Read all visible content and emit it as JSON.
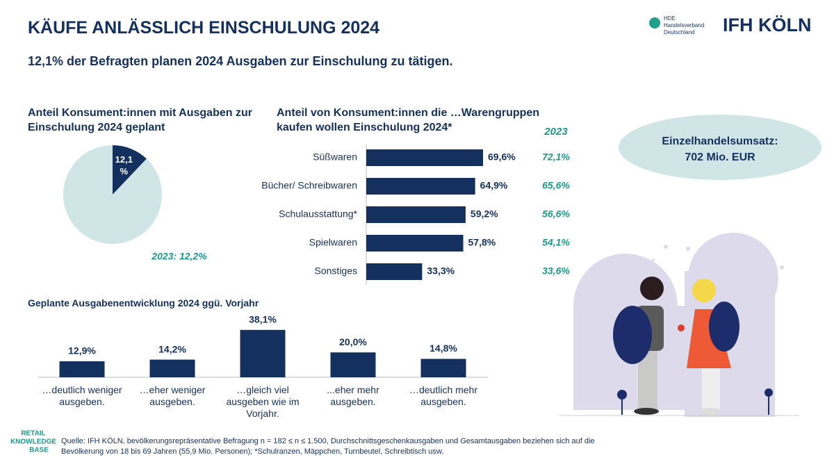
{
  "header": {
    "title": "KÄUFE ANLÄSSLICH EINSCHULUNG 2024",
    "subtitle": "12,1% der Befragten planen 2024 Ausgaben zur Einschulung zu tätigen.",
    "logo_hde": [
      "HDE",
      "Handelsverband",
      "Deutschland"
    ],
    "logo_ifh": "IFH KÖLN"
  },
  "callout": {
    "label": "Einzelhandelsumsatz:",
    "value": "702 Mio. EUR"
  },
  "chart_data": [
    {
      "type": "pie",
      "title": "Anteil Konsument:innen mit Ausgaben zur Einschulung 2024 geplant",
      "values": [
        12.1,
        87.9
      ],
      "value_labels": [
        "12,1 %",
        null
      ],
      "colors": [
        "#14305e",
        "#cfe5e6"
      ],
      "annotation": "2023: 12,2%"
    },
    {
      "type": "hbar",
      "title": "Anteil von Konsument:innen die …Warengruppen kaufen wollen Einschulung 2024*",
      "categories": [
        "Süßwaren",
        "Bücher/ Schreibwaren",
        "Schulausstattung*",
        "Spielwaren",
        "Sonstiges"
      ],
      "values": [
        69.6,
        64.9,
        59.2,
        57.8,
        33.3
      ],
      "value_labels": [
        "69,6%",
        "64,9%",
        "59,2%",
        "57,8%",
        "33,3%"
      ],
      "color": "#14305e",
      "xlim": [
        0,
        100
      ],
      "comparison": {
        "label": "2023",
        "values": [
          72.1,
          65.6,
          56.6,
          54.1,
          33.6
        ],
        "value_labels": [
          "72,1%",
          "65,6%",
          "56,6%",
          "54,1%",
          "33,6%"
        ]
      }
    },
    {
      "type": "bar",
      "title": "Geplante Ausgabenentwicklung 2024 ggü. Vorjahr",
      "categories": [
        "…deutlich weniger ausgeben.",
        "…eher weniger ausgeben.",
        "…gleich viel ausgeben wie im Vorjahr.",
        "...eher mehr ausgeben.",
        "…deutlich mehr ausgeben."
      ],
      "values": [
        12.9,
        14.2,
        38.1,
        20.0,
        14.8
      ],
      "value_labels": [
        "12,9%",
        "14,2%",
        "38,1%",
        "20,0%",
        "14,8%"
      ],
      "color": "#14305e",
      "ylim": [
        0,
        40
      ]
    }
  ],
  "footer": {
    "brand": [
      "RETAIL",
      "KNOWLEDGE",
      "BASE"
    ],
    "source": "Quelle: IFH KÖLN, bevölkerungsrepräsentative Befragung n = 182 ≤ n ≤ 1.500, Durchschnittsgeschenkausgaben und Gesamtausgaben beziehen sich auf die Bevölkerung von 18 bis 69 Jahren (55,9 Mio. Personen); *Schulranzen, Mäppchen, Turnbeutel, Schreibtisch usw."
  }
}
